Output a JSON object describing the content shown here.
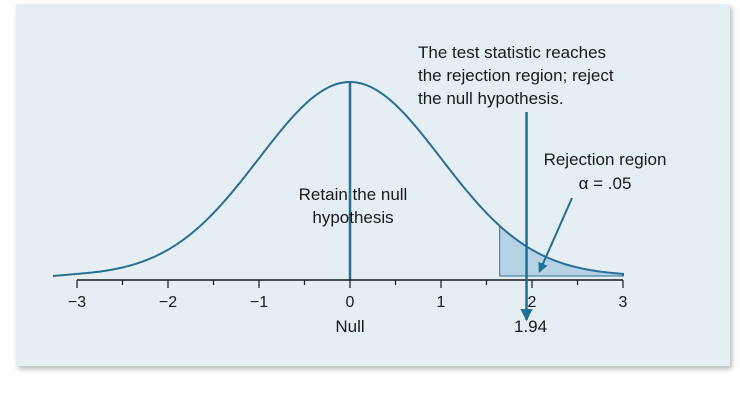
{
  "chart_data": {
    "type": "area",
    "distribution": "standard normal",
    "x_range": [
      -3,
      3
    ],
    "x_ticks": [
      -3,
      -2,
      -1,
      0,
      1,
      2,
      3
    ],
    "tick_labels": [
      "−3",
      "−2",
      "−1",
      "0",
      "1",
      "2",
      "3"
    ],
    "xlabel": "Null",
    "critical_value": 1.645,
    "alpha": 0.05,
    "test_statistic": 1.94,
    "test_statistic_label": "1.94",
    "annotations": {
      "retain": [
        "Retain the null",
        "hypothesis"
      ],
      "test_statistic": [
        "The test statistic reaches",
        "the rejection region; reject",
        "the null hypothesis."
      ],
      "rejection": [
        "Rejection region",
        "α = .05"
      ]
    }
  },
  "colors": {
    "background": "#e5eef3",
    "curve": "#2a6f93",
    "shade": "#b6d3e6",
    "arrow": "#1f6f97",
    "axis": "#1a1a1a"
  }
}
